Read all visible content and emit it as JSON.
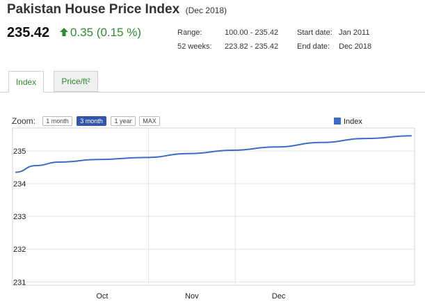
{
  "header": {
    "title": "Pakistan House Price Index",
    "period": "(Dec 2018)",
    "price": "235.42",
    "change": "0.35 (0.15 %)",
    "change_color": "#2e8b2e",
    "range_label": "Range:",
    "range_value": "100.00 - 235.42",
    "weeks_label": "52 weeks:",
    "weeks_value": "223.82 - 235.42",
    "start_label": "Start date:",
    "start_value": "Jan 2011",
    "end_label": "End date:",
    "end_value": "Dec 2018"
  },
  "tabs": [
    {
      "label": "Index",
      "active": true
    },
    {
      "label": "Price/ft²",
      "active": false
    }
  ],
  "zoom": {
    "label": "Zoom:",
    "options": [
      {
        "label": "1 month",
        "active": false
      },
      {
        "label": "3 month",
        "active": true
      },
      {
        "label": "1 year",
        "active": false
      },
      {
        "label": "MAX",
        "active": false
      }
    ]
  },
  "chart_data": {
    "type": "line",
    "title": "",
    "xlabel": "",
    "ylabel": "",
    "x_ticks": [
      "Oct",
      "Nov",
      "Dec"
    ],
    "y_ticks": [
      231,
      232,
      233,
      234,
      235
    ],
    "ylim": [
      230.9,
      235.7
    ],
    "grid": true,
    "legend_position": "top-right",
    "series": [
      {
        "name": "Index",
        "color": "#3d6cc7",
        "points": [
          {
            "x": "2018-09-16",
            "y": 234.35
          },
          {
            "x": "2018-09-23",
            "y": 234.55
          },
          {
            "x": "2018-10-01",
            "y": 234.66
          },
          {
            "x": "2018-10-15",
            "y": 234.74
          },
          {
            "x": "2018-10-31",
            "y": 234.8
          },
          {
            "x": "2018-11-15",
            "y": 234.92
          },
          {
            "x": "2018-11-30",
            "y": 235.02
          },
          {
            "x": "2018-12-15",
            "y": 235.12
          },
          {
            "x": "2018-12-31",
            "y": 235.26
          },
          {
            "x": "2019-01-15",
            "y": 235.38
          },
          {
            "x": "2019-01-31",
            "y": 235.46
          }
        ]
      }
    ]
  }
}
